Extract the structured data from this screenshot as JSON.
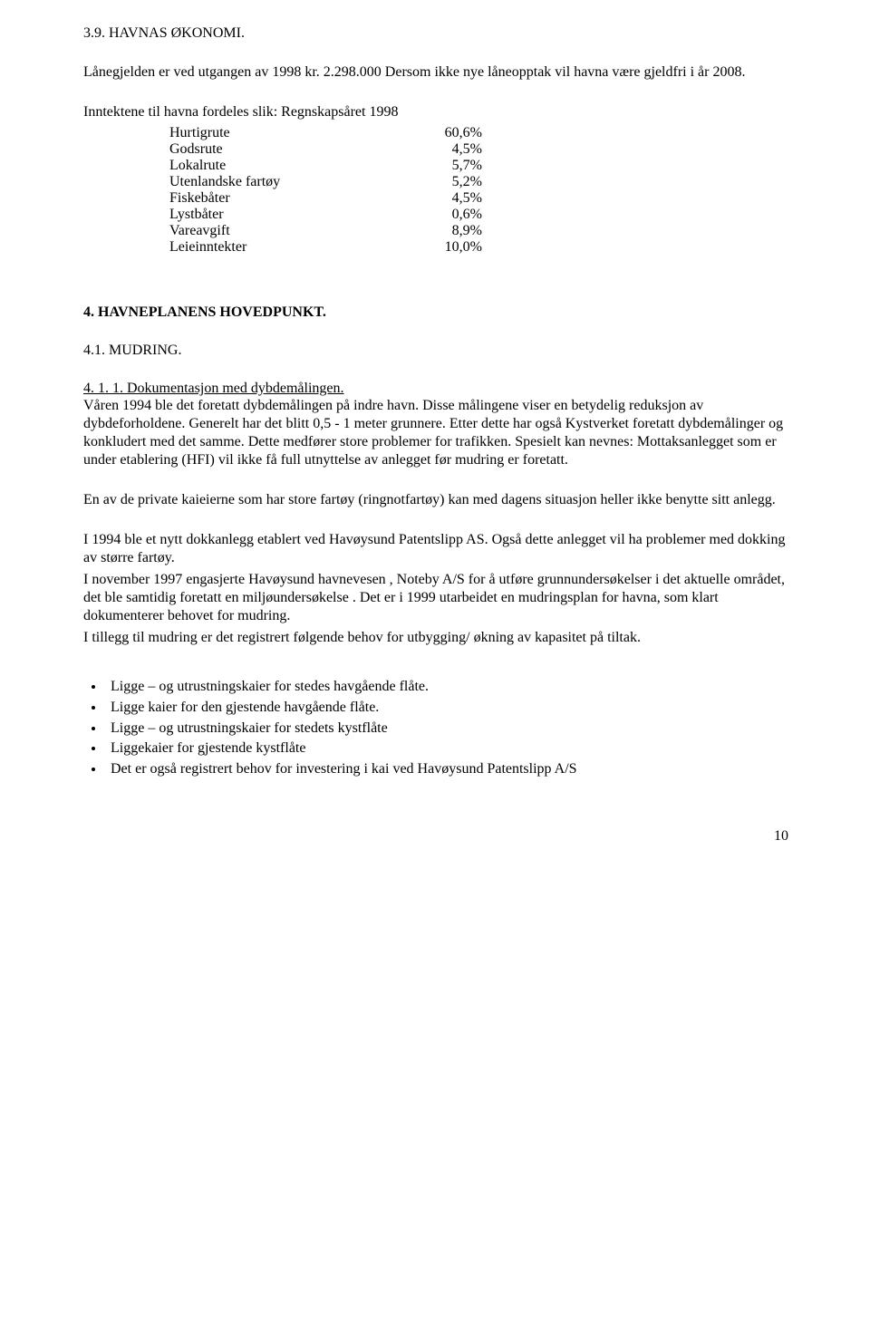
{
  "section39": {
    "heading": "3.9. HAVNAS ØKONOMI.",
    "para1": "Lånegjelden er ved utgangen av 1998 kr. 2.298.000  Dersom ikke nye låneopptak vil havna være gjeldfri i år 2008.",
    "income_intro": "Inntektene til havna fordeles slik: Regnskapsåret 1998",
    "income_rows": [
      {
        "label": "Hurtigrute",
        "value": "60,6%"
      },
      {
        "label": "Godsrute",
        "value": "4,5%"
      },
      {
        "label": "Lokalrute",
        "value": "5,7%"
      },
      {
        "label": "Utenlandske fartøy",
        "value": "5,2%"
      },
      {
        "label": "Fiskebåter",
        "value": "4,5%"
      },
      {
        "label": "Lystbåter",
        "value": "0,6%"
      },
      {
        "label": "Vareavgift",
        "value": "8,9%"
      },
      {
        "label": "Leieinntekter",
        "value": "10,0%"
      }
    ]
  },
  "section4": {
    "heading": "4.    HAVNEPLANENS HOVEDPUNKT.",
    "sub41": "4.1. MUDRING.",
    "sub411": "4. 1. 1. Dokumentasjon med dybdemålingen.",
    "para1": "Våren 1994 ble det foretatt dybdemålingen på indre havn. Disse målingene viser en betydelig reduksjon av dybdeforholdene. Generelt har det blitt 0,5 - 1 meter grunnere. Etter dette har også Kystverket foretatt dybdemålinger og konkludert med det samme. Dette medfører store problemer for trafikken. Spesielt kan nevnes: Mottaksanlegget som er under etablering (HFI) vil ikke få full utnyttelse av anlegget før mudring er foretatt.",
    "para2": "En av de private kaieierne som har store fartøy (ringnotfartøy) kan med dagens situasjon heller ikke benytte sitt anlegg.",
    "para3": "I 1994 ble et nytt dokkanlegg etablert ved Havøysund Patentslipp AS.  Også dette anlegget vil ha problemer med dokking av større fartøy.",
    "para4": "I november 1997 engasjerte Havøysund havnevesen , Noteby A/S for å utføre grunnundersøkelser i det aktuelle området, det ble samtidig foretatt en  miljøundersøkelse . Det er i 1999 utarbeidet en mudringsplan for havna, som klart dokumenterer behovet for mudring.",
    "para5": "I tillegg til mudring er det registrert følgende behov for utbygging/ økning av kapasitet på tiltak.",
    "bullets": [
      "Ligge – og utrustningskaier for stedes havgående flåte.",
      "Ligge kaier for den gjestende havgående flåte.",
      "Ligge – og utrustningskaier for stedets kystflåte",
      "Liggekaier for gjestende kystflåte",
      "Det er også registrert behov for investering i kai ved Havøysund Patentslipp A/S"
    ]
  },
  "pageNumber": "10"
}
